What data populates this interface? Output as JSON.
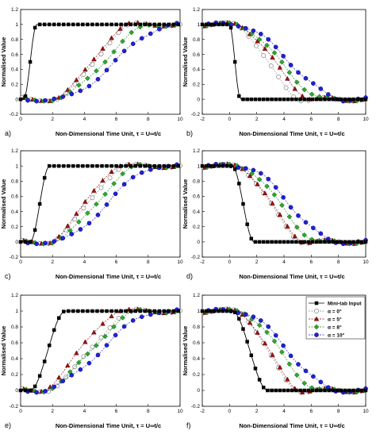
{
  "figure": {
    "xlabel": "Non-Dimensional Time Unit, τ = U∞t/c",
    "ylabel": "Normalised Value",
    "legend": {
      "placement": "top-right of panel f",
      "entries": [
        {
          "label": "Mini-tab Input",
          "series": "input"
        },
        {
          "label": "α = 0°",
          "series": "a0"
        },
        {
          "label": "α = 5°",
          "series": "a5"
        },
        {
          "label": "α = 8°",
          "series": "a8"
        },
        {
          "label": "α = 10°",
          "series": "a10"
        }
      ]
    },
    "styles": {
      "input": {
        "color": "#000000",
        "marker": "square",
        "fill": "#000000",
        "line": "solid"
      },
      "a0": {
        "color": "#888888",
        "marker": "circle",
        "fill": "#ffffff",
        "line": "dashed"
      },
      "a5": {
        "color": "#8b0000",
        "marker": "triangle",
        "fill": "#a01010",
        "line": "dashed"
      },
      "a8": {
        "color": "#1a8c1a",
        "marker": "diamond",
        "fill": "#2ea82e",
        "line": "dashed"
      },
      "a10": {
        "color": "#1a1acc",
        "marker": "circle",
        "fill": "#2020dd",
        "line": "dashed"
      }
    }
  },
  "chart_data": [
    {
      "panel": "a)",
      "type": "line",
      "kind": "rise",
      "xlim": [
        0,
        10
      ],
      "ylim": [
        -0.2,
        1.2
      ],
      "xticks": [
        "0",
        "2",
        "4",
        "6",
        "8",
        "10"
      ],
      "yticks": [
        "-0.2",
        "0",
        "0.2",
        "0.4",
        "0.6",
        "0.8",
        "1",
        "1.2"
      ],
      "params": {
        "input": [
          0.2,
          1.0
        ],
        "a0": [
          2.0,
          7.2
        ],
        "a5": [
          1.9,
          7.0
        ],
        "a8": [
          2.0,
          8.4
        ],
        "a10": [
          2.2,
          9.6
        ]
      }
    },
    {
      "panel": "b)",
      "type": "line",
      "kind": "fall",
      "xlim": [
        -2,
        10
      ],
      "ylim": [
        -0.2,
        1.2
      ],
      "xticks": [
        "-2",
        "0",
        "2",
        "4",
        "6",
        "8",
        "10"
      ],
      "yticks": [
        "-0.2",
        "0",
        "0.2",
        "0.4",
        "0.6",
        "0.8",
        "1",
        "1.2"
      ],
      "params": {
        "input": [
          0.0,
          0.8
        ],
        "a0": [
          0.2,
          5.4
        ],
        "a5": [
          0.3,
          6.3
        ],
        "a8": [
          0.3,
          7.2
        ],
        "a10": [
          0.4,
          8.4
        ]
      }
    },
    {
      "panel": "c)",
      "type": "line",
      "kind": "rise",
      "xlim": [
        0,
        10
      ],
      "ylim": [
        -0.2,
        1.2
      ],
      "xticks": [
        "0",
        "2",
        "4",
        "6",
        "8",
        "10"
      ],
      "yticks": [
        "-0.2",
        "0",
        "0.2",
        "0.4",
        "0.6",
        "0.8",
        "1",
        "1.2"
      ],
      "params": {
        "input": [
          0.6,
          1.8
        ],
        "a0": [
          1.6,
          6.8
        ],
        "a5": [
          1.6,
          6.4
        ],
        "a8": [
          1.8,
          7.6
        ],
        "a10": [
          2.0,
          8.8
        ]
      }
    },
    {
      "panel": "d)",
      "type": "line",
      "kind": "fall",
      "xlim": [
        -2,
        10
      ],
      "ylim": [
        -0.2,
        1.2
      ],
      "xticks": [
        "-2",
        "0",
        "2",
        "4",
        "6",
        "8",
        "10"
      ],
      "yticks": [
        "-0.2",
        "0",
        "0.2",
        "0.4",
        "0.6",
        "0.8",
        "1",
        "1.2"
      ],
      "params": {
        "input": [
          0.2,
          1.8
        ],
        "a0": [
          0.4,
          5.6
        ],
        "a5": [
          0.4,
          5.8
        ],
        "a8": [
          0.6,
          6.8
        ],
        "a10": [
          0.8,
          8.0
        ]
      }
    },
    {
      "panel": "e)",
      "type": "line",
      "kind": "rise",
      "xlim": [
        0,
        10
      ],
      "ylim": [
        -0.2,
        1.2
      ],
      "xticks": [
        "0",
        "2",
        "4",
        "6",
        "8",
        "10"
      ],
      "yticks": [
        "-0.2",
        "0",
        "0.2",
        "0.4",
        "0.6",
        "0.8",
        "1",
        "1.2"
      ],
      "params": {
        "input": [
          0.6,
          2.8
        ],
        "a0": [
          1.4,
          7.2
        ],
        "a5": [
          1.0,
          6.4
        ],
        "a8": [
          1.2,
          7.6
        ],
        "a10": [
          1.2,
          8.8
        ]
      }
    },
    {
      "panel": "f)",
      "type": "line",
      "kind": "fall",
      "xlim": [
        -2,
        10
      ],
      "ylim": [
        -0.2,
        1.2
      ],
      "xticks": [
        "-2",
        "0",
        "2",
        "4",
        "6",
        "8",
        "10"
      ],
      "yticks": [
        "-0.2",
        "0",
        "0.2",
        "0.4",
        "0.6",
        "0.8",
        "1",
        "1.2"
      ],
      "params": {
        "input": [
          0.2,
          2.8
        ],
        "a0": [
          0.4,
          5.2
        ],
        "a5": [
          0.4,
          5.4
        ],
        "a8": [
          0.6,
          6.8
        ],
        "a10": [
          0.6,
          8.0
        ]
      }
    }
  ]
}
